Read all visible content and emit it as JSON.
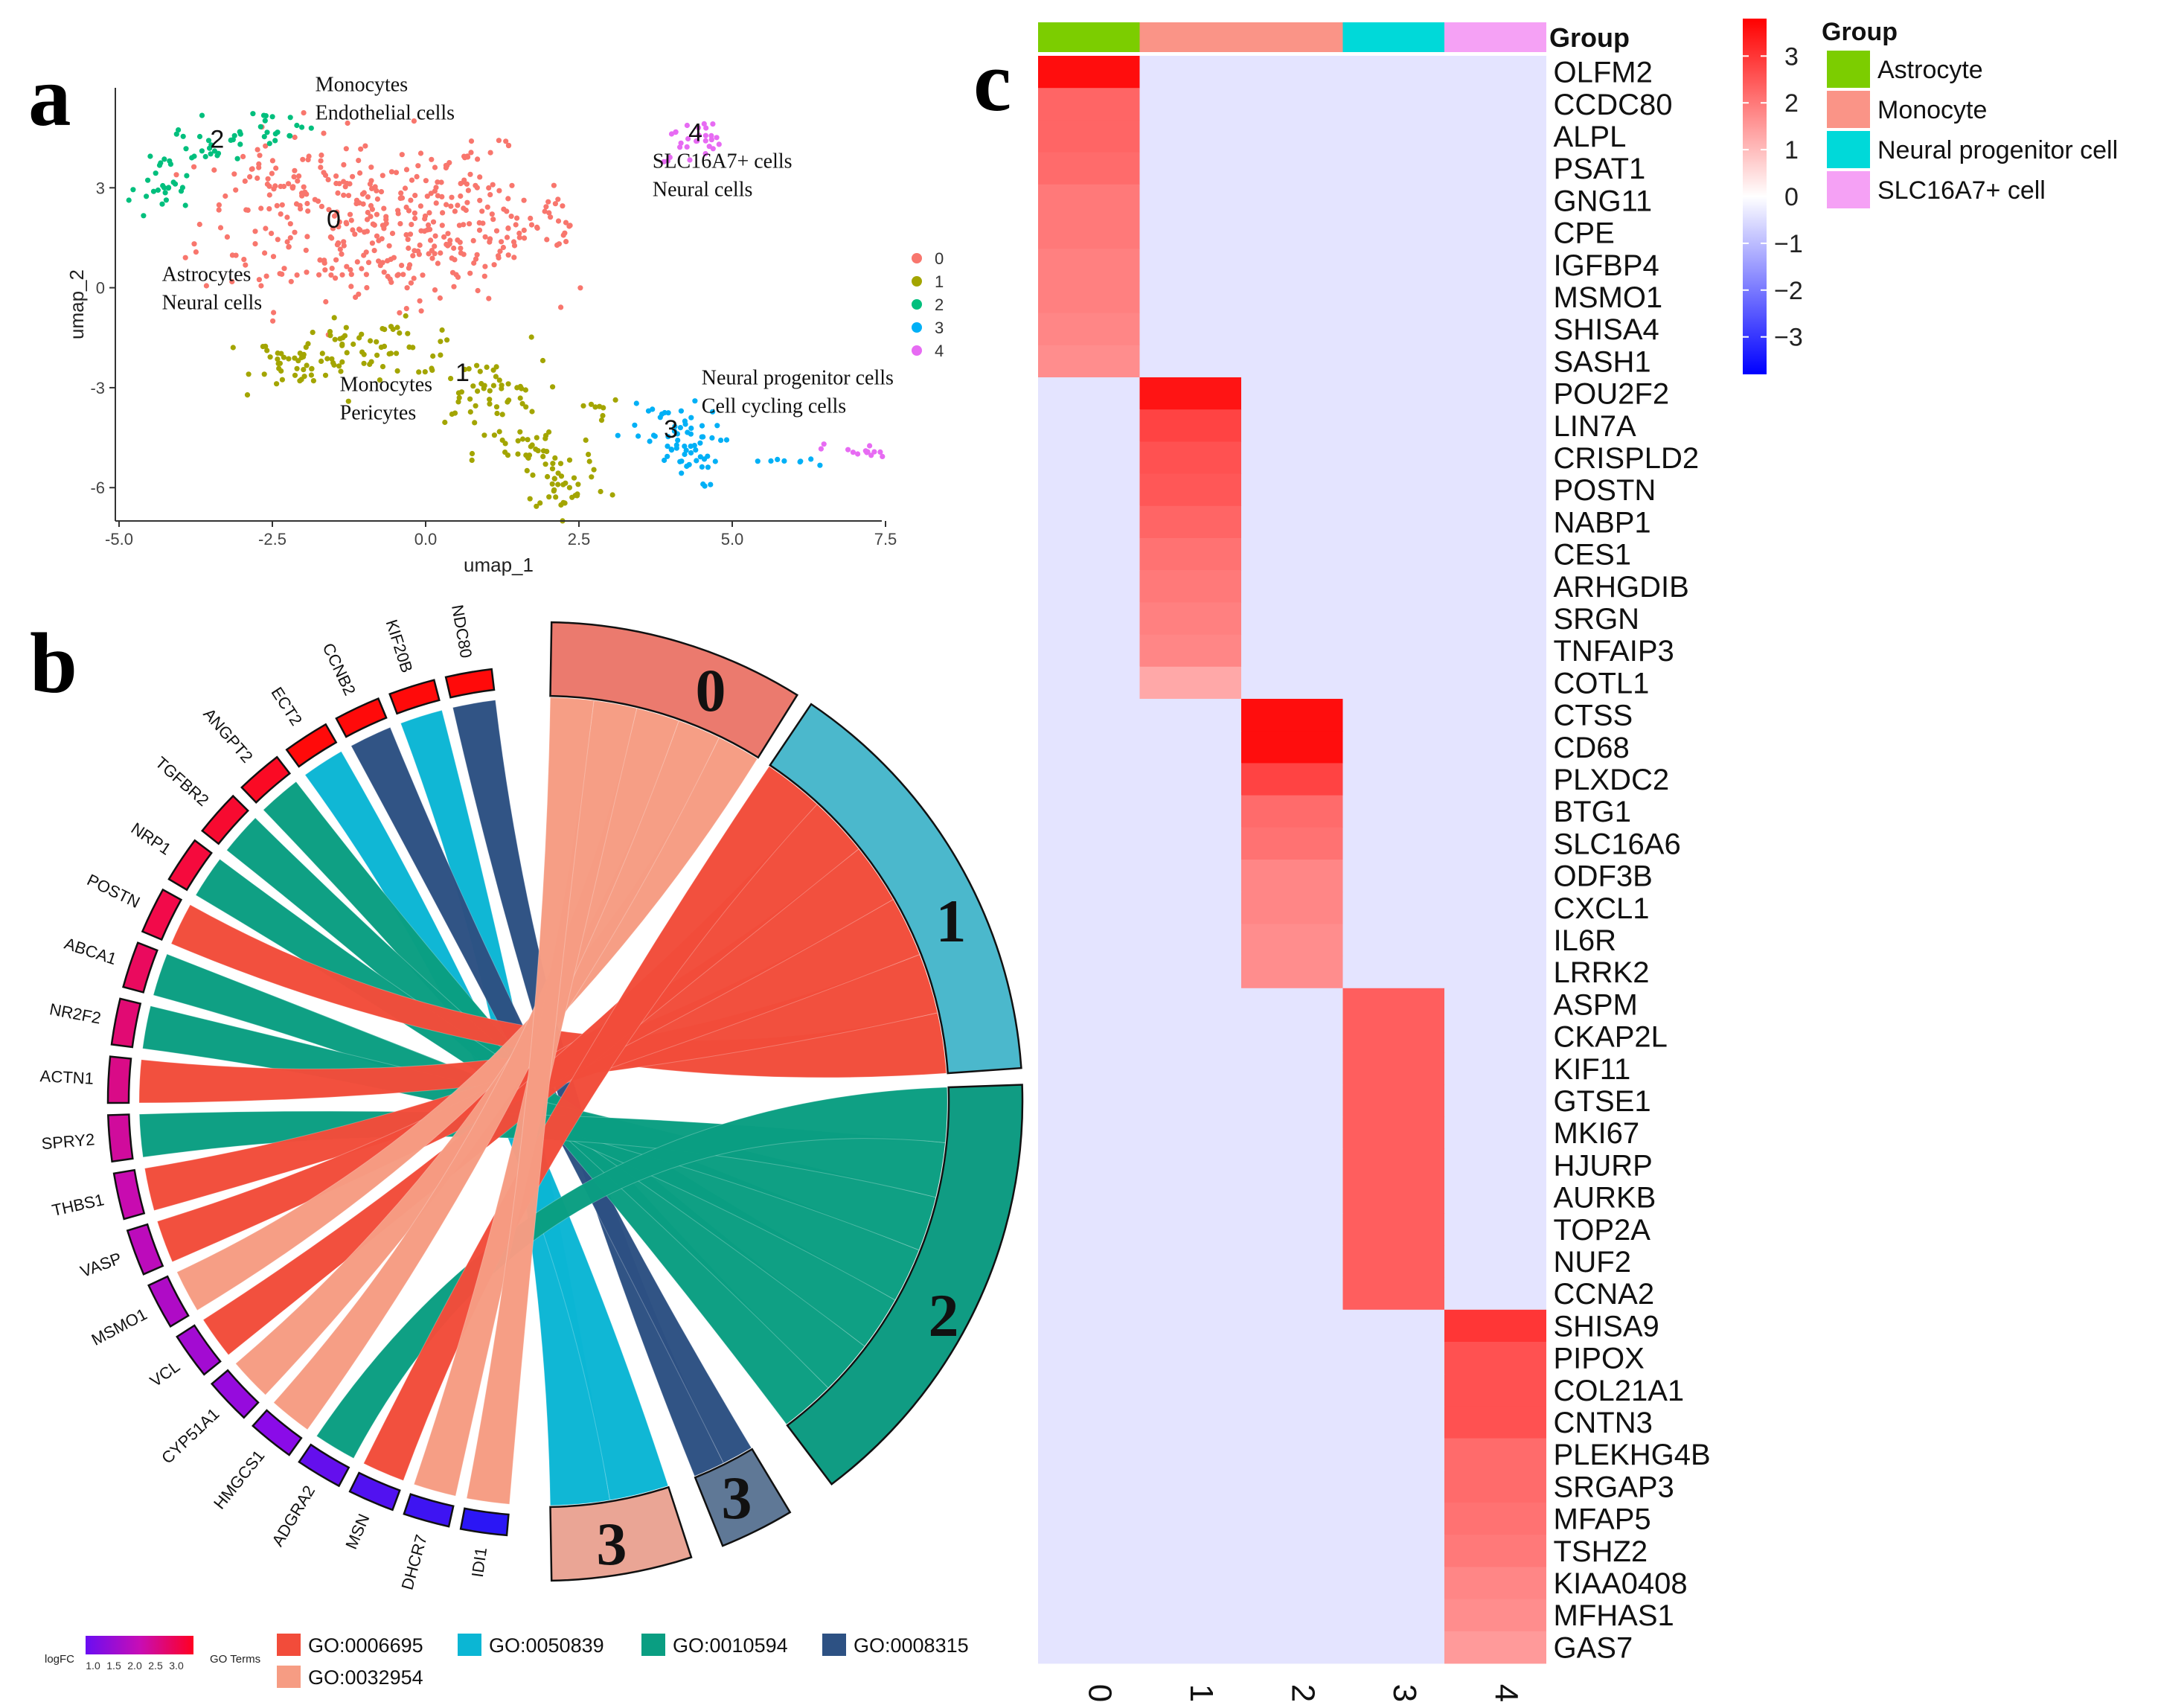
{
  "panels": {
    "a": "a",
    "b": "b",
    "c": "c"
  },
  "chart_data": [
    {
      "type": "scatter",
      "panel": "a",
      "xlabel": "umap_1",
      "ylabel": "umap_2",
      "xlim": [
        -5.0,
        7.5
      ],
      "ylim": [
        -7.0,
        6.0
      ],
      "xticks": [
        "-5.0",
        "-2.5",
        "0.0",
        "2.5",
        "5.0",
        "7.5"
      ],
      "yticks": [
        "-6",
        "-3",
        "0",
        "3"
      ],
      "legend": {
        "position": "right",
        "entries": [
          "0",
          "1",
          "2",
          "3",
          "4"
        ]
      },
      "clusters": [
        {
          "name": "0",
          "color": "#F8766D",
          "label_at": [
            -1.5,
            1.8
          ]
        },
        {
          "name": "1",
          "color": "#A3A500",
          "label_at": [
            0.6,
            -2.8
          ]
        },
        {
          "name": "2",
          "color": "#00BF7D",
          "label_at": [
            -3.4,
            4.2
          ]
        },
        {
          "name": "3",
          "color": "#00B0F6",
          "label_at": [
            4.0,
            -4.5
          ]
        },
        {
          "name": "4",
          "color": "#E76BF3",
          "label_at": [
            4.4,
            4.4
          ]
        }
      ],
      "annotations": [
        {
          "lines": [
            "Monocytes",
            "Endothelial cells"
          ],
          "at": [
            -1.8,
            5.9
          ]
        },
        {
          "lines": [
            "SLC16A7+ cells",
            "Neural cells"
          ],
          "at": [
            3.7,
            3.6
          ]
        },
        {
          "lines": [
            "Astrocytes",
            "Neural cells"
          ],
          "at": [
            -4.3,
            0.2
          ]
        },
        {
          "lines": [
            "Monocytes",
            "Pericytes"
          ],
          "at": [
            -1.4,
            -3.1
          ]
        },
        {
          "lines": [
            "Neural progenitor cells",
            "Cell cycling cells"
          ],
          "at": [
            4.5,
            -2.9
          ]
        }
      ]
    },
    {
      "type": "chord",
      "panel": "b",
      "groups": [
        {
          "name": "0",
          "color": "#EB7A6E"
        },
        {
          "name": "1",
          "color": "#4BB8CC"
        },
        {
          "name": "2",
          "color": "#109C83"
        },
        {
          "name": "3",
          "color": "#5F7896"
        },
        {
          "name": "3",
          "color": "#EAA595"
        }
      ],
      "genes": [
        "NDC80",
        "KIF20B",
        "CCNB2",
        "ECT2",
        "ANGPT2",
        "TGFBR2",
        "NRP1",
        "POSTN",
        "ABCA1",
        "NR2F2",
        "ACTN1",
        "SPRY2",
        "THBS1",
        "VASP",
        "MSMO1",
        "VCL",
        "CYP51A1",
        "HMGCS1",
        "ADGRA2",
        "MSN",
        "DHCR7",
        "IDI1"
      ],
      "gene_logfc": [
        3.0,
        3.0,
        3.0,
        3.0,
        2.8,
        2.7,
        2.6,
        2.5,
        2.4,
        2.3,
        2.2,
        2.1,
        2.0,
        1.9,
        1.8,
        1.7,
        1.6,
        1.5,
        1.3,
        1.2,
        1.1,
        1.0
      ],
      "ribbons": [
        {
          "gene": "NDC80",
          "group": 3,
          "term": 3
        },
        {
          "gene": "KIF20B",
          "group": 4,
          "term": 1
        },
        {
          "gene": "CCNB2",
          "group": 3,
          "term": 3
        },
        {
          "gene": "ECT2",
          "group": 4,
          "term": 1
        },
        {
          "gene": "ANGPT2",
          "group": 2,
          "term": 2
        },
        {
          "gene": "TGFBR2",
          "group": 2,
          "term": 2
        },
        {
          "gene": "NRP1",
          "group": 2,
          "term": 2
        },
        {
          "gene": "POSTN",
          "group": 1,
          "term": 0
        },
        {
          "gene": "ABCA1",
          "group": 2,
          "term": 2
        },
        {
          "gene": "NR2F2",
          "group": 2,
          "term": 2
        },
        {
          "gene": "ACTN1",
          "group": 1,
          "term": 0
        },
        {
          "gene": "SPRY2",
          "group": 2,
          "term": 2
        },
        {
          "gene": "THBS1",
          "group": 1,
          "term": 0
        },
        {
          "gene": "VASP",
          "group": 1,
          "term": 0
        },
        {
          "gene": "MSMO1",
          "group": 0,
          "term": 4
        },
        {
          "gene": "VCL",
          "group": 1,
          "term": 0
        },
        {
          "gene": "CYP51A1",
          "group": 0,
          "term": 4
        },
        {
          "gene": "HMGCS1",
          "group": 0,
          "term": 4
        },
        {
          "gene": "ADGRA2",
          "group": 2,
          "term": 2
        },
        {
          "gene": "MSN",
          "group": 1,
          "term": 0
        },
        {
          "gene": "DHCR7",
          "group": 0,
          "term": 4
        },
        {
          "gene": "IDI1",
          "group": 0,
          "term": 4
        }
      ],
      "logfc_legend": {
        "title": "logFC",
        "ticks": [
          "1.0",
          "1.5",
          "2.0",
          "2.5",
          "3.0"
        ]
      },
      "go_terms_title": "GO Terms",
      "go_terms": [
        {
          "id": "GO:0006695",
          "color": "#F24C3A"
        },
        {
          "id": "GO:0050839",
          "color": "#0BB6D4"
        },
        {
          "id": "GO:0010594",
          "color": "#0A9E82"
        },
        {
          "id": "GO:0008315",
          "color": "#2D5183"
        },
        {
          "id": "GO:0032954",
          "color": "#F69C83"
        }
      ]
    },
    {
      "type": "heatmap",
      "panel": "c",
      "columns": [
        "0",
        "1",
        "2",
        "3",
        "4"
      ],
      "column_groups": [
        "Astrocyte",
        "Monocyte",
        "Monocyte",
        "Neural progenitor cell",
        "SLC16A7+ cell"
      ],
      "group_row_label": "Group",
      "legend_group_title": "Group",
      "group_colors": [
        {
          "name": "Astrocyte",
          "color": "#7CCD00"
        },
        {
          "name": "Monocyte",
          "color": "#FA9487"
        },
        {
          "name": "Neural progenitor cell",
          "color": "#00D9D9"
        },
        {
          "name": "SLC16A7+ cell",
          "color": "#F5A1F5"
        }
      ],
      "color_scale": {
        "min": -3.8,
        "max": 3.8,
        "ticks": [
          "3",
          "2",
          "1",
          "0",
          "−1",
          "−2",
          "−3"
        ],
        "tick_values": [
          3,
          2,
          1,
          0,
          -1,
          -2,
          -3
        ]
      },
      "background_value": -0.4,
      "rows": [
        {
          "gene": "OLFM2",
          "col": 0,
          "value": 3.6
        },
        {
          "gene": "CCDC80",
          "col": 0,
          "value": 2.3
        },
        {
          "gene": "ALPL",
          "col": 0,
          "value": 2.3
        },
        {
          "gene": "PSAT1",
          "col": 0,
          "value": 2.2
        },
        {
          "gene": "GNG11",
          "col": 0,
          "value": 2.0
        },
        {
          "gene": "CPE",
          "col": 0,
          "value": 2.0
        },
        {
          "gene": "IGFBP4",
          "col": 0,
          "value": 1.9
        },
        {
          "gene": "MSMO1",
          "col": 0,
          "value": 1.9
        },
        {
          "gene": "SHISA4",
          "col": 0,
          "value": 1.8
        },
        {
          "gene": "SASH1",
          "col": 0,
          "value": 1.7
        },
        {
          "gene": "POU2F2",
          "col": 1,
          "value": 3.5
        },
        {
          "gene": "LIN7A",
          "col": 1,
          "value": 2.8
        },
        {
          "gene": "CRISPLD2",
          "col": 1,
          "value": 2.6
        },
        {
          "gene": "POSTN",
          "col": 1,
          "value": 2.5
        },
        {
          "gene": "NABP1",
          "col": 1,
          "value": 2.3
        },
        {
          "gene": "CES1",
          "col": 1,
          "value": 2.1
        },
        {
          "gene": "ARHGDIB",
          "col": 1,
          "value": 2.0
        },
        {
          "gene": "SRGN",
          "col": 1,
          "value": 1.9
        },
        {
          "gene": "TNFAIP3",
          "col": 1,
          "value": 1.8
        },
        {
          "gene": "COTL1",
          "col": 1,
          "value": 1.3
        },
        {
          "gene": "CTSS",
          "col": 2,
          "value": 3.6
        },
        {
          "gene": "CD68",
          "col": 2,
          "value": 3.6
        },
        {
          "gene": "PLXDC2",
          "col": 2,
          "value": 2.8
        },
        {
          "gene": "BTG1",
          "col": 2,
          "value": 2.2
        },
        {
          "gene": "SLC16A6",
          "col": 2,
          "value": 2.1
        },
        {
          "gene": "ODF3B",
          "col": 2,
          "value": 1.8
        },
        {
          "gene": "CXCL1",
          "col": 2,
          "value": 1.8
        },
        {
          "gene": "IL6R",
          "col": 2,
          "value": 1.7
        },
        {
          "gene": "LRRK2",
          "col": 2,
          "value": 1.7
        },
        {
          "gene": "ASPM",
          "col": 3,
          "value": 2.4
        },
        {
          "gene": "CKAP2L",
          "col": 3,
          "value": 2.4
        },
        {
          "gene": "KIF11",
          "col": 3,
          "value": 2.4
        },
        {
          "gene": "GTSE1",
          "col": 3,
          "value": 2.4
        },
        {
          "gene": "MKI67",
          "col": 3,
          "value": 2.4
        },
        {
          "gene": "HJURP",
          "col": 3,
          "value": 2.4
        },
        {
          "gene": "AURKB",
          "col": 3,
          "value": 2.4
        },
        {
          "gene": "TOP2A",
          "col": 3,
          "value": 2.4
        },
        {
          "gene": "NUF2",
          "col": 3,
          "value": 2.4
        },
        {
          "gene": "CCNA2",
          "col": 3,
          "value": 2.4
        },
        {
          "gene": "SHISA9",
          "col": 4,
          "value": 3.0
        },
        {
          "gene": "PIPOX",
          "col": 4,
          "value": 2.6
        },
        {
          "gene": "COL21A1",
          "col": 4,
          "value": 2.6
        },
        {
          "gene": "CNTN3",
          "col": 4,
          "value": 2.6
        },
        {
          "gene": "PLEKHG4B",
          "col": 4,
          "value": 2.2
        },
        {
          "gene": "SRGAP3",
          "col": 4,
          "value": 2.2
        },
        {
          "gene": "MFAP5",
          "col": 4,
          "value": 2.1
        },
        {
          "gene": "TSHZ2",
          "col": 4,
          "value": 2.0
        },
        {
          "gene": "KIAA0408",
          "col": 4,
          "value": 1.8
        },
        {
          "gene": "MFHAS1",
          "col": 4,
          "value": 1.7
        },
        {
          "gene": "GAS7",
          "col": 4,
          "value": 1.5
        }
      ]
    }
  ]
}
